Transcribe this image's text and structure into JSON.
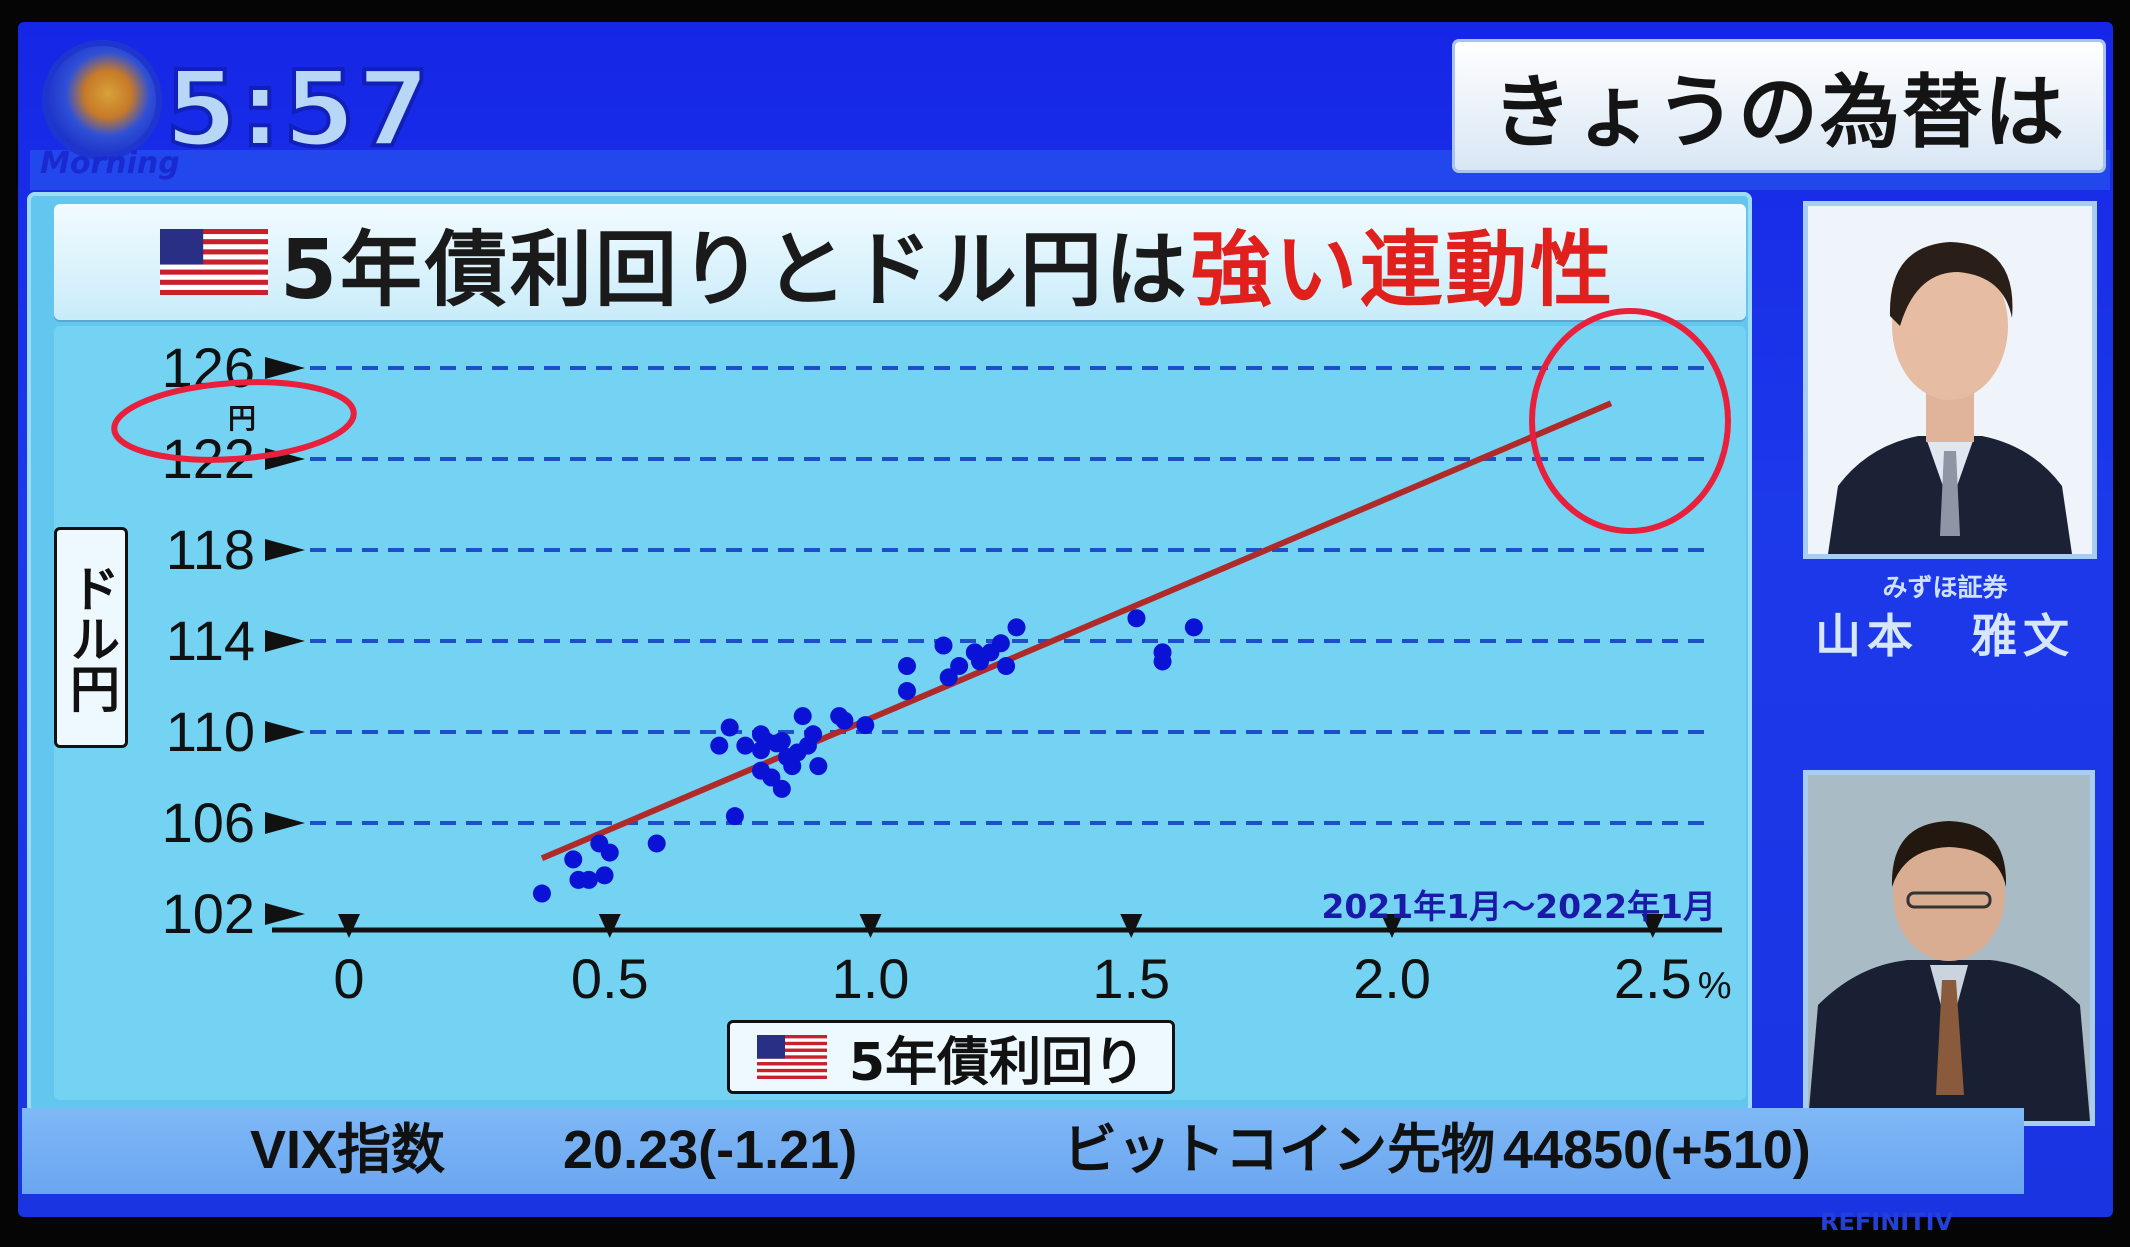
{
  "broadcast": {
    "clock": "5:57",
    "logo_text": "Morning",
    "headline": "きょうの為替は",
    "credit": "REFINITIV"
  },
  "chart_title": {
    "main": "5年債利回りとドル円は",
    "emphasis": "強い連動性"
  },
  "guest": {
    "affiliation": "みずほ証券",
    "name": "山本　雅文"
  },
  "ticker": [
    {
      "label": "VIX指数",
      "value": "20.23(-1.21)"
    },
    {
      "label": "ビットコイン先物",
      "value": "44850(+510)"
    }
  ],
  "colors": {
    "screen_blue": "#1a30e6",
    "panel": "#74d3f3",
    "points": "#0a12d6",
    "trendline": "#b02a2a",
    "emphasis_red": "#e0201c",
    "annotation_red": "#e8203c"
  },
  "chart_data": {
    "type": "scatter",
    "title": "5年債利回りとドル円は強い連動性",
    "xlabel": "5年債利回り",
    "ylabel": "ドル円",
    "y_unit": "円",
    "period": "2021年1月～2022年1月",
    "xlim": [
      0,
      2.5
    ],
    "ylim": [
      102,
      126
    ],
    "x_ticks": [
      "0",
      "0.5",
      "1.0",
      "1.5",
      "2.0",
      "2.5"
    ],
    "x_tick_values": [
      0,
      0.5,
      1.0,
      1.5,
      2.0,
      2.5
    ],
    "x_unit": "%",
    "y_ticks": [
      102,
      106,
      110,
      114,
      118,
      122,
      126
    ],
    "grid": "horizontal dashed",
    "points": [
      [
        0.37,
        102.9
      ],
      [
        0.43,
        104.4
      ],
      [
        0.44,
        103.5
      ],
      [
        0.46,
        103.5
      ],
      [
        0.49,
        103.7
      ],
      [
        0.48,
        105.1
      ],
      [
        0.5,
        104.7
      ],
      [
        0.59,
        105.1
      ],
      [
        0.74,
        106.3
      ],
      [
        0.71,
        109.4
      ],
      [
        0.73,
        110.2
      ],
      [
        0.76,
        109.4
      ],
      [
        0.79,
        109.9
      ],
      [
        0.8,
        109.6
      ],
      [
        0.79,
        109.2
      ],
      [
        0.82,
        109.5
      ],
      [
        0.83,
        109.6
      ],
      [
        0.84,
        108.9
      ],
      [
        0.85,
        108.5
      ],
      [
        0.86,
        109.1
      ],
      [
        0.88,
        109.4
      ],
      [
        0.89,
        109.9
      ],
      [
        0.9,
        108.5
      ],
      [
        0.79,
        108.3
      ],
      [
        0.81,
        108.0
      ],
      [
        0.83,
        107.5
      ],
      [
        0.87,
        110.7
      ],
      [
        0.94,
        110.7
      ],
      [
        0.95,
        110.5
      ],
      [
        0.99,
        110.3
      ],
      [
        1.07,
        112.9
      ],
      [
        1.07,
        111.8
      ],
      [
        1.14,
        113.8
      ],
      [
        1.15,
        112.4
      ],
      [
        1.17,
        112.9
      ],
      [
        1.2,
        113.5
      ],
      [
        1.21,
        113.1
      ],
      [
        1.23,
        113.5
      ],
      [
        1.25,
        113.9
      ],
      [
        1.26,
        112.9
      ],
      [
        1.28,
        114.6
      ],
      [
        1.51,
        115.0
      ],
      [
        1.56,
        113.5
      ],
      [
        1.56,
        113.1
      ],
      [
        1.62,
        114.6
      ]
    ],
    "trendline": [
      [
        0.37,
        104.45
      ],
      [
        2.42,
        124.45
      ]
    ],
    "annotations": [
      "circle around 122-126 円 axis label",
      "circle around trendline end near 2.5%"
    ]
  }
}
